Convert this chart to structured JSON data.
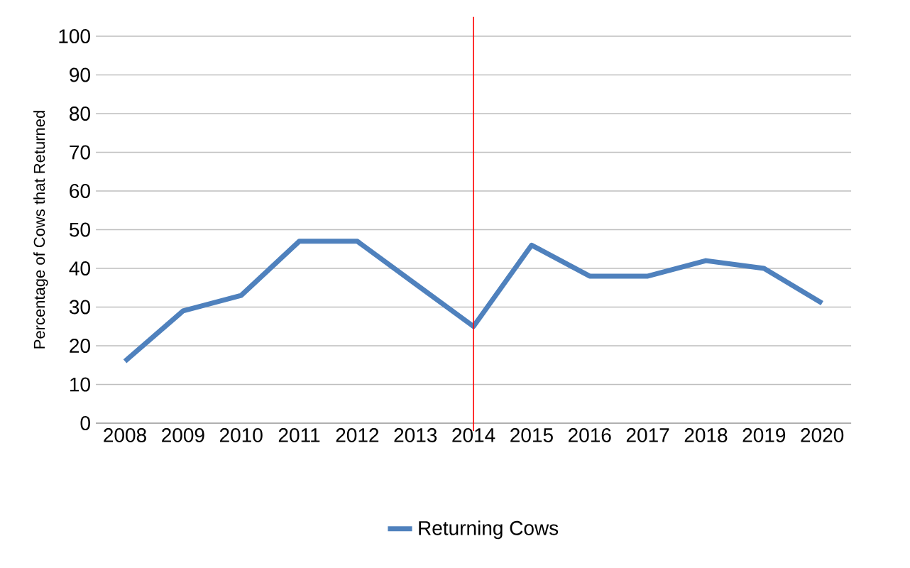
{
  "chart_data": {
    "type": "line",
    "ylabel": "Percentage of Cows that Returned",
    "categories": [
      "2008",
      "2009",
      "2010",
      "2011",
      "2012",
      "2013",
      "2014",
      "2015",
      "2016",
      "2017",
      "2018",
      "2019",
      "2020"
    ],
    "series": [
      {
        "name": "Returning Cows",
        "color": "#4f81bd",
        "values": [
          16,
          29,
          33,
          47,
          47,
          36,
          25,
          46,
          38,
          38,
          42,
          40,
          31
        ]
      }
    ],
    "ylim": [
      0,
      100
    ],
    "yticks": [
      0,
      10,
      20,
      30,
      40,
      50,
      60,
      70,
      80,
      90,
      100
    ],
    "grid": "y",
    "legend": "bottom",
    "marker": "none",
    "line_style": "solid",
    "ref_lines": [
      {
        "axis": "x",
        "value": "2014",
        "color": "#ff0000"
      }
    ]
  }
}
